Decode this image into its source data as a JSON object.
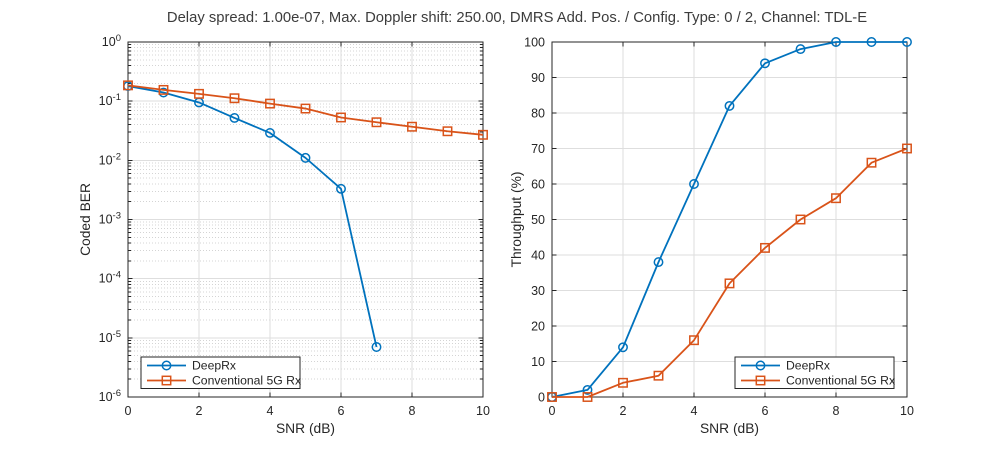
{
  "title": "Delay spread: 1.00e-07, Max. Doppler shift: 250.00, DMRS Add. Pos. / Config. Type: 0 / 2, Channel: TDL-E",
  "colors": {
    "deeprx": "#0072BD",
    "conventional": "#D95319",
    "major_grid": "#dedede",
    "minor_grid": "#d4d4d4",
    "axis": "#262626",
    "text": "#262626",
    "title_text": "#3c3c3c",
    "legend_border": "#262626",
    "background": "#ffffff"
  },
  "legend_labels": [
    "DeepRx",
    "Conventional 5G Rx"
  ],
  "chart_data": [
    {
      "id": "coded-ber",
      "type": "line",
      "title": "",
      "xlabel": "SNR (dB)",
      "ylabel": "Coded BER",
      "xlim": [
        0,
        10
      ],
      "xticks": [
        0,
        2,
        4,
        6,
        8,
        10
      ],
      "yscale": "log",
      "ylim": [
        1e-06,
        1
      ],
      "ytick_exponents": [
        0,
        -1,
        -2,
        -3,
        -4,
        -5,
        -6
      ],
      "ytick_labels": [
        "10^0",
        "10^-1",
        "10^-2",
        "10^-3",
        "10^-4",
        "10^-5",
        "10^-6"
      ],
      "grid": true,
      "minor_grid": true,
      "legend_position": "bottom-left",
      "series": [
        {
          "name": "DeepRx",
          "color": "#0072BD",
          "marker": "circle",
          "x": [
            0,
            1,
            2,
            3,
            4,
            5,
            6,
            7
          ],
          "y": [
            0.18,
            0.14,
            0.095,
            0.052,
            0.029,
            0.011,
            0.0033,
            7e-06
          ]
        },
        {
          "name": "Conventional 5G Rx",
          "color": "#D95319",
          "marker": "square",
          "x": [
            0,
            1,
            2,
            3,
            4,
            5,
            6,
            7,
            8,
            9,
            10
          ],
          "y": [
            0.185,
            0.155,
            0.133,
            0.112,
            0.091,
            0.075,
            0.053,
            0.044,
            0.037,
            0.031,
            0.027
          ]
        }
      ]
    },
    {
      "id": "throughput",
      "type": "line",
      "title": "",
      "xlabel": "SNR (dB)",
      "ylabel": "Throughput (%)",
      "xlim": [
        0,
        10
      ],
      "xticks": [
        0,
        2,
        4,
        6,
        8,
        10
      ],
      "yscale": "linear",
      "ylim": [
        0,
        100
      ],
      "yticks": [
        0,
        10,
        20,
        30,
        40,
        50,
        60,
        70,
        80,
        90,
        100
      ],
      "grid": true,
      "minor_grid": false,
      "legend_position": "bottom-right",
      "series": [
        {
          "name": "DeepRx",
          "color": "#0072BD",
          "marker": "circle",
          "x": [
            0,
            1,
            2,
            3,
            4,
            5,
            6,
            7,
            8,
            9,
            10
          ],
          "y": [
            0,
            2,
            14,
            38,
            60,
            82,
            94,
            98,
            100,
            100,
            100
          ]
        },
        {
          "name": "Conventional 5G Rx",
          "color": "#D95319",
          "marker": "square",
          "x": [
            0,
            1,
            2,
            3,
            4,
            5,
            6,
            7,
            8,
            9,
            10
          ],
          "y": [
            0,
            0,
            4,
            6,
            16,
            32,
            42,
            50,
            56,
            66,
            70
          ]
        }
      ]
    }
  ]
}
